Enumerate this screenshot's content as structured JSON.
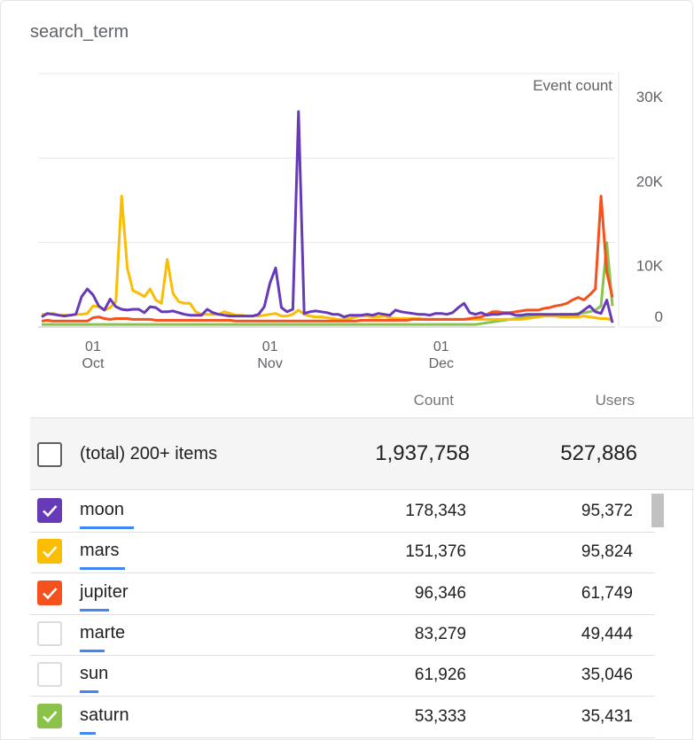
{
  "card": {
    "title": "search_term"
  },
  "chart_data": {
    "type": "line",
    "y_axis_label": "Event count",
    "y_ticks": [
      "30K",
      "20K",
      "10K",
      "0"
    ],
    "y_tick_values": [
      30000,
      20000,
      10000,
      0
    ],
    "ylim": [
      0,
      30000
    ],
    "y_axis_position": "right",
    "grid": true,
    "x_ticks": [
      {
        "day": "01",
        "month": "Oct",
        "date": "2022-10-01"
      },
      {
        "day": "01",
        "month": "Nov",
        "date": "2022-11-01"
      },
      {
        "day": "01",
        "month": "Dec",
        "date": "2022-12-01"
      }
    ],
    "x_start": "2022-09-22",
    "x_end": "2022-12-31",
    "series": [
      {
        "name": "moon",
        "color": "#673ab7",
        "values": [
          1200,
          1600,
          1500,
          1400,
          1300,
          1400,
          1500,
          3600,
          4500,
          3800,
          2500,
          2000,
          3300,
          2400,
          2100,
          2000,
          2100,
          2100,
          1700,
          2400,
          2300,
          1800,
          1800,
          1900,
          1700,
          1500,
          1400,
          1400,
          1400,
          2100,
          1700,
          1500,
          1400,
          1300,
          1300,
          1300,
          1300,
          1300,
          1500,
          2400,
          5200,
          7000,
          2300,
          1800,
          2100,
          25500,
          1600,
          1800,
          1900,
          1800,
          1700,
          1500,
          1500,
          1200,
          1400,
          1400,
          1400,
          1500,
          1400,
          1600,
          1500,
          1400,
          2000,
          1800,
          1700,
          1600,
          1500,
          1500,
          1400,
          1600,
          1600,
          1500,
          1700,
          2300,
          2800,
          1700,
          1500,
          1700,
          1400,
          1500,
          1500,
          1600,
          1600,
          1400,
          1400,
          1500,
          1500,
          1500,
          1500,
          1500,
          1500,
          1500,
          1500,
          1500,
          1500,
          2000,
          2500,
          1800,
          1600,
          3200,
          500
        ]
      },
      {
        "name": "mars",
        "color": "#fbbc04",
        "values": [
          1500,
          1500,
          1600,
          1400,
          1400,
          1400,
          1500,
          1500,
          1600,
          2500,
          2400,
          2000,
          2300,
          3000,
          15500,
          7000,
          4300,
          4000,
          3600,
          4500,
          3200,
          2800,
          8000,
          4000,
          3000,
          2800,
          2800,
          1800,
          1500,
          1500,
          1500,
          1500,
          1800,
          1600,
          1400,
          1400,
          1300,
          1300,
          1300,
          1400,
          1500,
          1600,
          1300,
          1300,
          1500,
          2000,
          1500,
          1300,
          1200,
          1200,
          1100,
          1000,
          900,
          900,
          1000,
          1200,
          1300,
          1300,
          1200,
          1200,
          1300,
          1100,
          1000,
          1000,
          1000,
          1000,
          1000,
          900,
          900,
          900,
          900,
          900,
          900,
          900,
          900,
          900,
          900,
          900,
          900,
          900,
          900,
          900,
          900,
          900,
          900,
          1000,
          1100,
          1200,
          1300,
          1300,
          1300,
          1200,
          1200,
          1200,
          1200,
          1300,
          1200,
          1100,
          1000,
          1000,
          800
        ]
      },
      {
        "name": "jupiter",
        "color": "#f4511e",
        "values": [
          700,
          800,
          700,
          700,
          700,
          700,
          700,
          700,
          700,
          1100,
          1200,
          1000,
          900,
          1000,
          1000,
          1000,
          900,
          900,
          900,
          900,
          800,
          800,
          800,
          800,
          800,
          800,
          800,
          800,
          800,
          800,
          800,
          800,
          800,
          800,
          700,
          700,
          700,
          700,
          700,
          700,
          700,
          700,
          700,
          700,
          700,
          700,
          700,
          700,
          700,
          700,
          700,
          700,
          700,
          700,
          700,
          700,
          800,
          800,
          800,
          800,
          800,
          800,
          800,
          800,
          800,
          900,
          900,
          900,
          900,
          900,
          900,
          900,
          900,
          900,
          900,
          1000,
          1100,
          1200,
          1500,
          1800,
          1800,
          1700,
          1700,
          1800,
          1900,
          2000,
          2000,
          2000,
          2200,
          2300,
          2500,
          2600,
          2800,
          3200,
          3500,
          3200,
          3800,
          4500,
          15500,
          6500,
          3500
        ]
      },
      {
        "name": "saturn",
        "color": "#8bc34a",
        "values": [
          300,
          300,
          300,
          300,
          300,
          300,
          300,
          300,
          300,
          300,
          300,
          300,
          300,
          300,
          300,
          300,
          300,
          300,
          300,
          300,
          300,
          300,
          300,
          300,
          300,
          300,
          300,
          300,
          300,
          300,
          300,
          300,
          300,
          300,
          300,
          300,
          300,
          300,
          300,
          300,
          300,
          300,
          300,
          300,
          300,
          300,
          300,
          300,
          300,
          300,
          300,
          300,
          300,
          300,
          300,
          300,
          300,
          300,
          300,
          300,
          300,
          300,
          300,
          300,
          300,
          300,
          300,
          300,
          300,
          300,
          300,
          300,
          300,
          300,
          300,
          300,
          300,
          400,
          500,
          600,
          700,
          800,
          900,
          1000,
          1100,
          1200,
          1200,
          1300,
          1300,
          1400,
          1400,
          1500,
          1500,
          1500,
          1600,
          1700,
          1800,
          2000,
          2500,
          10000,
          2500
        ]
      }
    ]
  },
  "table": {
    "col_count": "Count",
    "col_users": "Users",
    "total": {
      "label": "(total) 200+ items",
      "count": "1,937,758",
      "users": "527,886"
    },
    "rows": [
      {
        "name": "moon",
        "count": "178,343",
        "users": "95,372",
        "checked": true,
        "color": "#673ab7",
        "share": 0.092
      },
      {
        "name": "mars",
        "count": "151,376",
        "users": "95,824",
        "checked": true,
        "color": "#fbbc04",
        "share": 0.078
      },
      {
        "name": "jupiter",
        "count": "96,346",
        "users": "61,749",
        "checked": true,
        "color": "#f4511e",
        "share": 0.05
      },
      {
        "name": "marte",
        "count": "83,279",
        "users": "49,444",
        "checked": false,
        "color": "",
        "share": 0.043
      },
      {
        "name": "sun",
        "count": "61,926",
        "users": "35,046",
        "checked": false,
        "color": "",
        "share": 0.032
      },
      {
        "name": "saturn",
        "count": "53,333",
        "users": "35,431",
        "checked": true,
        "color": "#8bc34a",
        "share": 0.028
      }
    ]
  }
}
